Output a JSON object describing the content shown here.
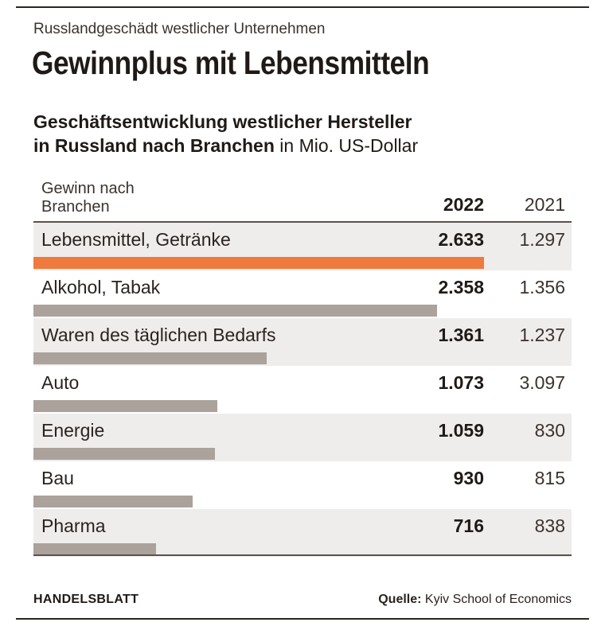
{
  "kicker": "Russlandgeschädt westlicher Unternehmen",
  "headline": "Gewinnplus mit Lebensmitteln",
  "subtitle": {
    "bold_line1": "Geschäftsentwicklung westlicher Hersteller",
    "bold_line2": "in Russland nach Branchen",
    "normal": " in Mio. US-Dollar"
  },
  "columns": {
    "category_line1": "Gewinn nach",
    "category_line2": "Branchen",
    "year_main": "2022",
    "year_prev": "2021"
  },
  "chart_data": {
    "type": "bar",
    "orientation": "horizontal",
    "title": "Gewinnplus mit Lebensmitteln",
    "categories": [
      "Lebensmittel, Getränke",
      "Alkohol, Tabak",
      "Waren des täglichen Bedarfs",
      "Auto",
      "Energie",
      "Bau",
      "Pharma"
    ],
    "series": [
      {
        "name": "2022",
        "values": [
          2633,
          2358,
          1361,
          1073,
          1059,
          930,
          716
        ],
        "labels": [
          "2.633",
          "2.358",
          "1.361",
          "1.073",
          "1.059",
          "930",
          "716"
        ],
        "shown_as_bars": true
      },
      {
        "name": "2021",
        "values": [
          1297,
          1356,
          1237,
          3097,
          830,
          815,
          838
        ],
        "labels": [
          "1.297",
          "1.356",
          "1.237",
          "3.097",
          "830",
          "815",
          "838"
        ],
        "shown_as_bars": false
      }
    ],
    "highlight_index": 0,
    "colors": {
      "highlight": "#ef7a3e",
      "bar": "#aaa29b",
      "row_shade": "#efedeb"
    }
  },
  "footer": {
    "brand": "HANDELSBLATT",
    "source_label": "Quelle:",
    "source_text": " Kyiv School of Economics"
  }
}
